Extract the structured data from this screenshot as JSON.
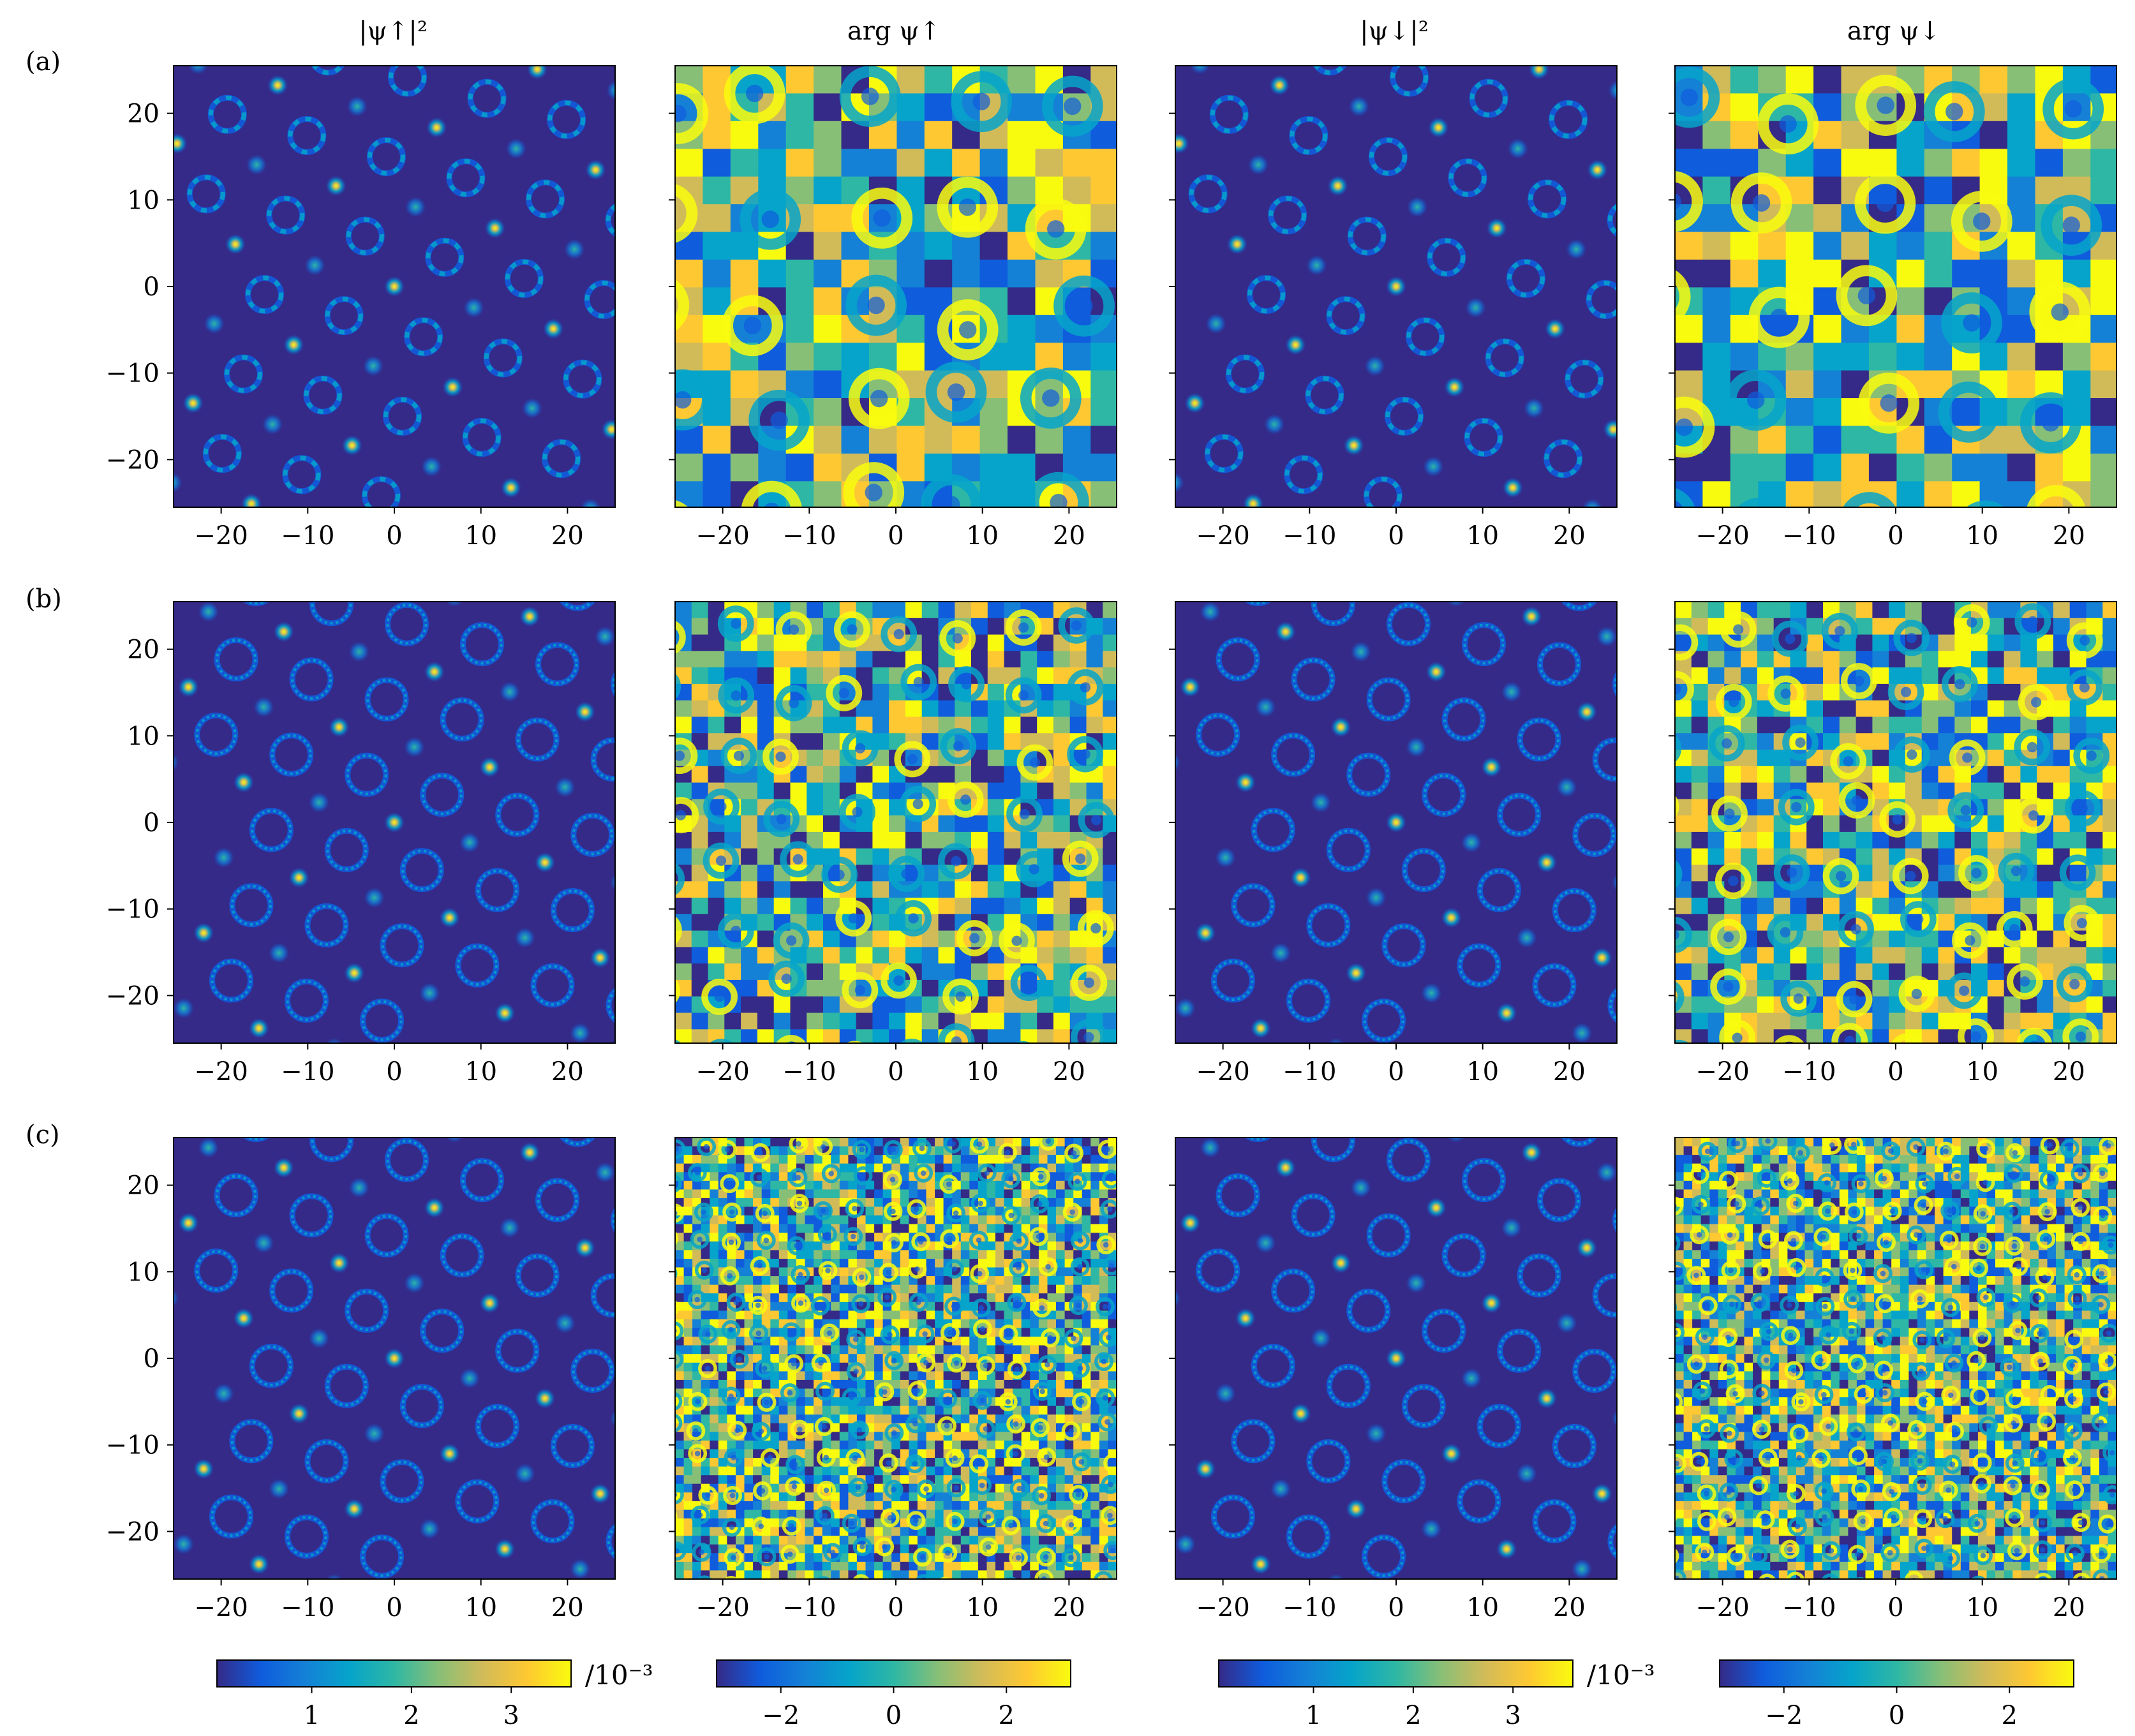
{
  "chart_data": {
    "type": "heatmap",
    "column_titles": [
      "|ψ↑|²",
      "arg ψ↑",
      "|ψ↓|²",
      "arg ψ↓"
    ],
    "row_labels": [
      "(a)",
      "(b)",
      "(c)"
    ],
    "xlim": [
      -25.5,
      25.5
    ],
    "ylim": [
      -25.5,
      25.5
    ],
    "x_ticks": [
      -20,
      -10,
      0,
      10,
      20
    ],
    "y_ticks": [
      20,
      10,
      0,
      -10,
      -20
    ],
    "x_tick_labels": [
      "−20",
      "−10",
      "0",
      "10",
      "20"
    ],
    "y_tick_labels": [
      "20",
      "10",
      "0",
      "−10",
      "−20"
    ],
    "colormap": "parula",
    "colormap_colors": [
      "#352a87",
      "#0f5cdd",
      "#1481d6",
      "#06a4ca",
      "#2eb7a4",
      "#87bf77",
      "#d1bb59",
      "#fec832",
      "#f9fb0e"
    ],
    "panels": [
      {
        "row": 0,
        "col": 0,
        "kind": "density",
        "lattice_period": 9.5
      },
      {
        "row": 0,
        "col": 1,
        "kind": "phase",
        "cell_size": 3.2
      },
      {
        "row": 0,
        "col": 2,
        "kind": "density",
        "lattice_period": 9.5
      },
      {
        "row": 0,
        "col": 3,
        "kind": "phase",
        "cell_size": 3.2
      },
      {
        "row": 1,
        "col": 0,
        "kind": "density",
        "lattice_period": 9.0
      },
      {
        "row": 1,
        "col": 1,
        "kind": "phase",
        "cell_size": 1.9
      },
      {
        "row": 1,
        "col": 2,
        "kind": "density",
        "lattice_period": 9.0
      },
      {
        "row": 1,
        "col": 3,
        "kind": "phase",
        "cell_size": 1.9
      },
      {
        "row": 2,
        "col": 0,
        "kind": "density",
        "lattice_period": 9.0
      },
      {
        "row": 2,
        "col": 1,
        "kind": "phase",
        "cell_size": 1.0
      },
      {
        "row": 2,
        "col": 2,
        "kind": "density",
        "lattice_period": 9.0
      },
      {
        "row": 2,
        "col": 3,
        "kind": "phase",
        "cell_size": 1.0
      }
    ],
    "colorbars": [
      {
        "range": [
          0.05,
          3.6
        ],
        "ticks": [
          1,
          2,
          3
        ],
        "tick_labels": [
          "1",
          "2",
          "3"
        ],
        "unit": "/10⁻³"
      },
      {
        "range": [
          -3.14,
          3.14
        ],
        "ticks": [
          -2,
          0,
          2
        ],
        "tick_labels": [
          "−2",
          "0",
          "2"
        ],
        "unit": ""
      },
      {
        "range": [
          0.05,
          3.6
        ],
        "ticks": [
          1,
          2,
          3
        ],
        "tick_labels": [
          "1",
          "2",
          "3"
        ],
        "unit": "/10⁻³"
      },
      {
        "range": [
          -3.14,
          3.14
        ],
        "ticks": [
          -2,
          0,
          2
        ],
        "tick_labels": [
          "−2",
          "0",
          "2"
        ],
        "unit": ""
      }
    ]
  }
}
